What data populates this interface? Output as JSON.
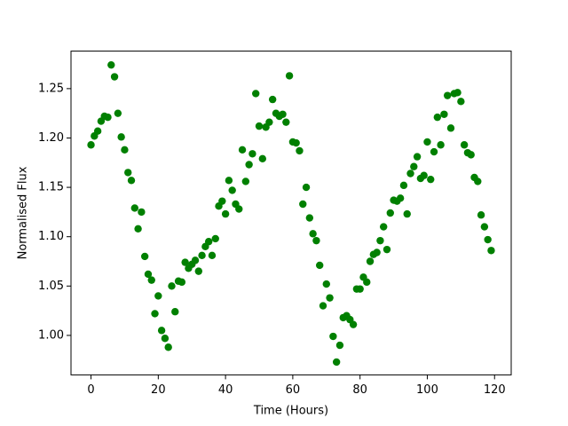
{
  "chart_data": {
    "type": "scatter",
    "x_label": "Time (Hours)",
    "y_label": "Normalised Flux",
    "color": "#008000",
    "x": [
      0,
      1,
      2,
      3,
      4,
      5,
      6,
      7,
      8,
      9,
      10,
      11,
      12,
      13,
      14,
      15,
      16,
      17,
      18,
      19,
      20,
      21,
      22,
      23,
      24,
      25,
      26,
      27,
      28,
      29,
      30,
      31,
      32,
      33,
      34,
      35,
      36,
      37,
      38,
      39,
      40,
      41,
      42,
      43,
      44,
      45,
      46,
      47,
      48,
      49,
      50,
      51,
      52,
      53,
      54,
      55,
      56,
      57,
      58,
      59,
      60,
      61,
      62,
      63,
      64,
      65,
      66,
      67,
      68,
      69,
      70,
      71,
      72,
      73,
      74,
      75,
      76,
      77,
      78,
      79,
      80,
      81,
      82,
      83,
      84,
      85,
      86,
      87,
      88,
      89,
      90,
      91,
      92,
      93,
      94,
      95,
      96,
      97,
      98,
      99,
      100,
      101,
      102,
      103,
      104,
      105,
      106,
      107,
      108,
      109,
      110,
      111,
      112,
      113,
      114,
      115,
      116,
      117,
      118,
      119
    ],
    "values": [
      1.193,
      1.202,
      1.207,
      1.217,
      1.222,
      1.221,
      1.274,
      1.262,
      1.225,
      1.201,
      1.188,
      1.165,
      1.157,
      1.129,
      1.108,
      1.125,
      1.08,
      1.062,
      1.056,
      1.022,
      1.04,
      1.005,
      0.997,
      0.988,
      1.05,
      1.024,
      1.055,
      1.054,
      1.074,
      1.068,
      1.072,
      1.076,
      1.065,
      1.081,
      1.09,
      1.095,
      1.081,
      1.098,
      1.131,
      1.136,
      1.123,
      1.157,
      1.147,
      1.133,
      1.128,
      1.188,
      1.156,
      1.173,
      1.184,
      1.245,
      1.212,
      1.179,
      1.211,
      1.216,
      1.239,
      1.225,
      1.222,
      1.224,
      1.216,
      1.263,
      1.196,
      1.195,
      1.187,
      1.133,
      1.15,
      1.119,
      1.103,
      1.096,
      1.071,
      1.03,
      1.052,
      1.038,
      0.999,
      0.973,
      0.99,
      1.018,
      1.02,
      1.016,
      1.011,
      1.047,
      1.047,
      1.059,
      1.054,
      1.075,
      1.082,
      1.084,
      1.096,
      1.11,
      1.087,
      1.124,
      1.137,
      1.136,
      1.139,
      1.152,
      1.123,
      1.164,
      1.171,
      1.181,
      1.159,
      1.162,
      1.196,
      1.158,
      1.186,
      1.221,
      1.193,
      1.224,
      1.243,
      1.21,
      1.245,
      1.246,
      1.237,
      1.193,
      1.185,
      1.183,
      1.16,
      1.156,
      1.122,
      1.11,
      1.097,
      1.086
    ],
    "xlim": [
      -5.95,
      124.95
    ],
    "ylim": [
      0.96,
      1.288
    ],
    "xticks": [
      0,
      20,
      40,
      60,
      80,
      100,
      120
    ],
    "yticks": [
      {
        "value": 1,
        "label": "1.00"
      },
      1.05,
      {
        "value": 1.1,
        "label": "1.10"
      },
      1.15,
      {
        "value": 1.2,
        "label": "1.20"
      },
      1.25
    ]
  }
}
